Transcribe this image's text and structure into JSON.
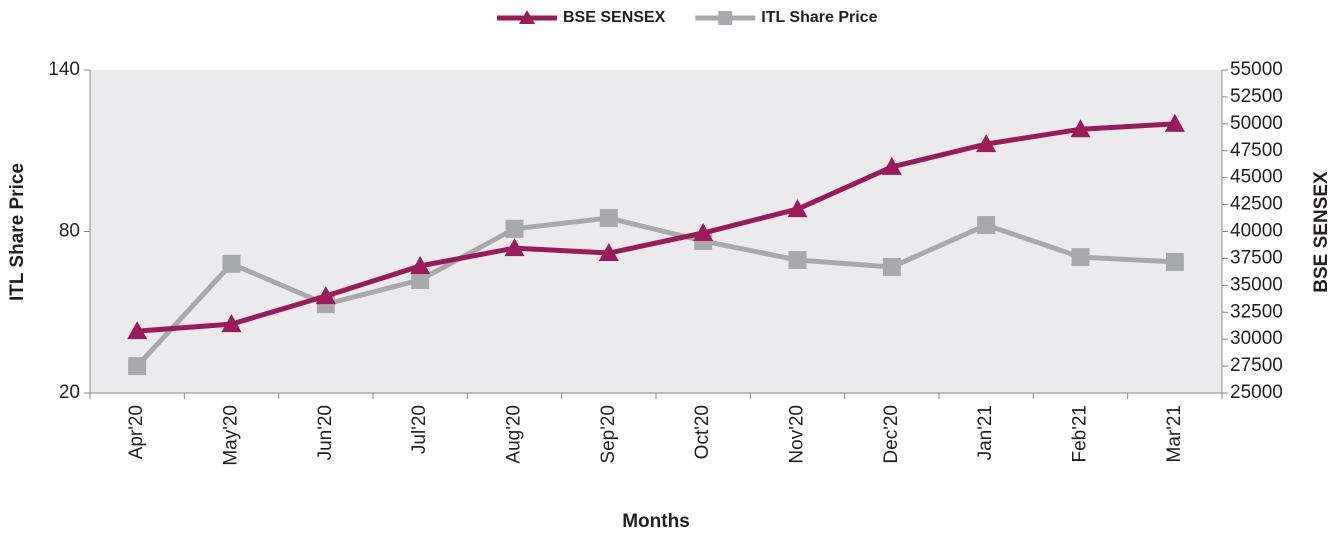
{
  "chart_data": {
    "type": "line",
    "x_label": "Months",
    "y_label": "ITL Share Price",
    "y2_label": "BSE SENSEX",
    "categories": [
      "Apr'20",
      "May'20",
      "Jun'20",
      "Jul'20",
      "Aug'20",
      "Sep'20",
      "Oct'20",
      "Nov'20",
      "Dec'20",
      "Jan'21",
      "Feb'21",
      "Mar'21"
    ],
    "series": [
      {
        "name": "BSE SENSEX",
        "color": "#9b1b5a",
        "marker": "triangle",
        "axis": "y2",
        "values": [
          30750,
          31400,
          34000,
          36800,
          38460,
          38000,
          39860,
          42080,
          46000,
          48120,
          49500,
          50000
        ]
      },
      {
        "name": "ITL Share Price",
        "color": "#a7a9ac",
        "marker": "square",
        "axis": "y",
        "values": [
          30,
          68,
          53,
          62,
          81,
          85,
          76.5,
          69.4,
          66.8,
          82.4,
          70.5,
          68.7
        ]
      }
    ],
    "ylim": [
      20,
      140
    ],
    "yticks": [
      20,
      80,
      140
    ],
    "y2lim": [
      25000,
      55000
    ],
    "y2ticks": [
      25000,
      27500,
      30000,
      32500,
      35000,
      37500,
      40000,
      42500,
      45000,
      47500,
      50000,
      52500,
      55000
    ],
    "legend": "top"
  }
}
